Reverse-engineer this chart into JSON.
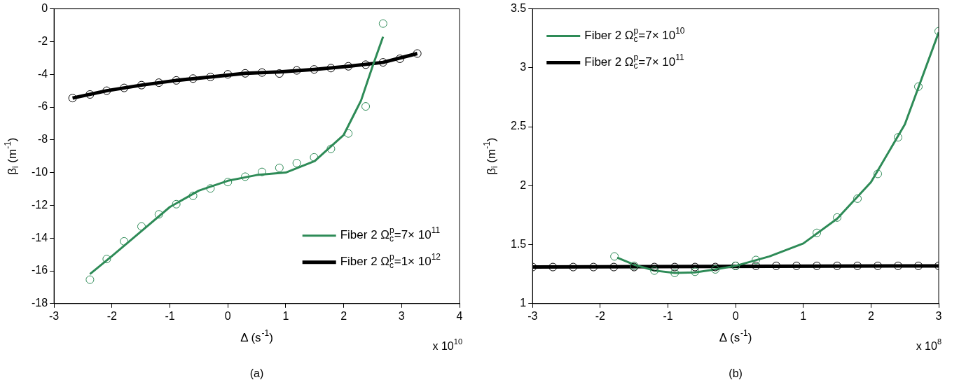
{
  "chart_data": [
    {
      "type": "line",
      "xlabel": "Δ (s$^{-1}$)",
      "ylabel": "β$_{i}$ (m$^{-1}$)",
      "xlim": [
        -3,
        4
      ],
      "ylim": [
        -18,
        0
      ],
      "xticks": [
        -3,
        -2,
        -1,
        0,
        1,
        2,
        3,
        4
      ],
      "yticks": [
        -18,
        -16,
        -14,
        -12,
        -10,
        -8,
        -6,
        -4,
        -2,
        0
      ],
      "grid": false,
      "legend": "bottom right",
      "line_style": "solid",
      "annotations": [
        "x 10$^{10}$",
        "(a)"
      ],
      "series": [
        {
          "name": "Fiber 2 Ω$_{c}$$^{p}$=7× 10$^{11}$",
          "color": "#2e8b57",
          "marker": "none",
          "x": [
            -2.38,
            -2,
            -1.5,
            -1,
            -0.5,
            0,
            0.5,
            1,
            1.5,
            2,
            2.3,
            2.5,
            2.68
          ],
          "values": [
            -16.2,
            -15.1,
            -13.6,
            -12.1,
            -11.1,
            -10.5,
            -10.15,
            -10,
            -9.3,
            -7.7,
            -5.6,
            -3.5,
            -1.7
          ]
        },
        {
          "color": "#2e8b57",
          "type": "scatter",
          "marker": "circle",
          "x": [
            -2.38,
            -2.09,
            -1.79,
            -1.49,
            -1.19,
            -0.89,
            -0.6,
            -0.3,
            0,
            0.3,
            0.59,
            0.89,
            1.19,
            1.49,
            1.78,
            2.08,
            2.38,
            2.68
          ],
          "values": [
            -16.54,
            -15.28,
            -14.2,
            -13.29,
            -12.55,
            -11.93,
            -11.42,
            -10.97,
            -10.58,
            -10.25,
            -9.96,
            -9.71,
            -9.42,
            -9.07,
            -8.55,
            -7.61,
            -5.96,
            -0.9
          ]
        },
        {
          "name": "Fiber 2 Ω$_{c}$$^{p}$=1× 10$^{12}$",
          "color": "#000000",
          "marker": "none",
          "x": [
            -2.68,
            -2.09,
            -1.49,
            -0.89,
            -0.3,
            0.3,
            0.89,
            1.49,
            2.08,
            2.68,
            3.27
          ],
          "values": [
            -5.45,
            -5,
            -4.66,
            -4.37,
            -4.16,
            -3.94,
            -3.85,
            -3.7,
            -3.51,
            -3.27,
            -2.73
          ]
        },
        {
          "color": "#000000",
          "type": "scatter",
          "marker": "circle",
          "x": [
            -2.68,
            -2.38,
            -2.09,
            -1.79,
            -1.49,
            -1.19,
            -0.89,
            -0.6,
            -0.3,
            0,
            0.3,
            0.59,
            0.89,
            1.19,
            1.49,
            1.78,
            2.08,
            2.38,
            2.68,
            2.97,
            3.27
          ],
          "values": [
            -5.45,
            -5.23,
            -5,
            -4.83,
            -4.66,
            -4.51,
            -4.37,
            -4.26,
            -4.16,
            -4,
            -3.94,
            -3.89,
            -3.95,
            -3.76,
            -3.7,
            -3.62,
            -3.51,
            -3.41,
            -3.27,
            -3.05,
            -2.73
          ]
        }
      ]
    },
    {
      "type": "line",
      "xlabel": "Δ (s$^{-1}$)",
      "ylabel": "β$_{i}$ (m$^{-1}$)",
      "xlim": [
        -3,
        3
      ],
      "ylim": [
        1,
        3.5
      ],
      "xticks": [
        -3,
        -2,
        -1,
        0,
        1,
        2,
        3
      ],
      "yticks": [
        1,
        1.5,
        2,
        2.5,
        3,
        3.5
      ],
      "grid": false,
      "legend": "top left",
      "line_style": "solid",
      "annotations": [
        "x 10$^{8}$",
        "(b)"
      ],
      "series": [
        {
          "name": "Fiber 2 Ω$_{c}$$^{p}$=7× 10$^{10}$",
          "color": "#2e8b57",
          "marker": "none",
          "x": [
            -1.75,
            -1.5,
            -1.2,
            -0.9,
            -0.6,
            -0.3,
            0,
            0.5,
            1,
            1.5,
            2,
            2.5,
            3
          ],
          "values": [
            1.39,
            1.33,
            1.28,
            1.26,
            1.265,
            1.29,
            1.32,
            1.4,
            1.51,
            1.72,
            2.03,
            2.52,
            3.3
          ]
        },
        {
          "color": "#2e8b57",
          "type": "scatter",
          "marker": "circle",
          "x": [
            -1.79,
            -1.5,
            -1.2,
            -0.9,
            -0.6,
            -0.3,
            0,
            0.3,
            1.2,
            1.5,
            1.8,
            2.1,
            2.4,
            2.7,
            3
          ],
          "values": [
            1.4,
            1.32,
            1.28,
            1.26,
            1.27,
            1.29,
            1.32,
            1.37,
            1.6,
            1.73,
            1.89,
            2.1,
            2.41,
            2.84,
            3.31
          ]
        },
        {
          "name": "Fiber 2 Ω$_{c}$$^{p}$=7× 10$^{11}$",
          "color": "#000000",
          "marker": "none",
          "x": [
            -3,
            3
          ],
          "values": [
            1.31,
            1.32
          ]
        },
        {
          "color": "#000000",
          "type": "scatter",
          "marker": "circle",
          "x": [
            -3,
            -2.7,
            -2.4,
            -2.1,
            -1.8,
            -1.5,
            -1.2,
            -0.9,
            -0.6,
            -0.3,
            0,
            0.3,
            0.6,
            0.9,
            1.2,
            1.5,
            1.8,
            2.1,
            2.4,
            2.7,
            3
          ],
          "values": [
            1.31,
            1.31,
            1.31,
            1.31,
            1.31,
            1.31,
            1.31,
            1.31,
            1.31,
            1.31,
            1.32,
            1.32,
            1.32,
            1.32,
            1.32,
            1.32,
            1.32,
            1.32,
            1.32,
            1.32,
            1.32
          ]
        }
      ]
    }
  ]
}
